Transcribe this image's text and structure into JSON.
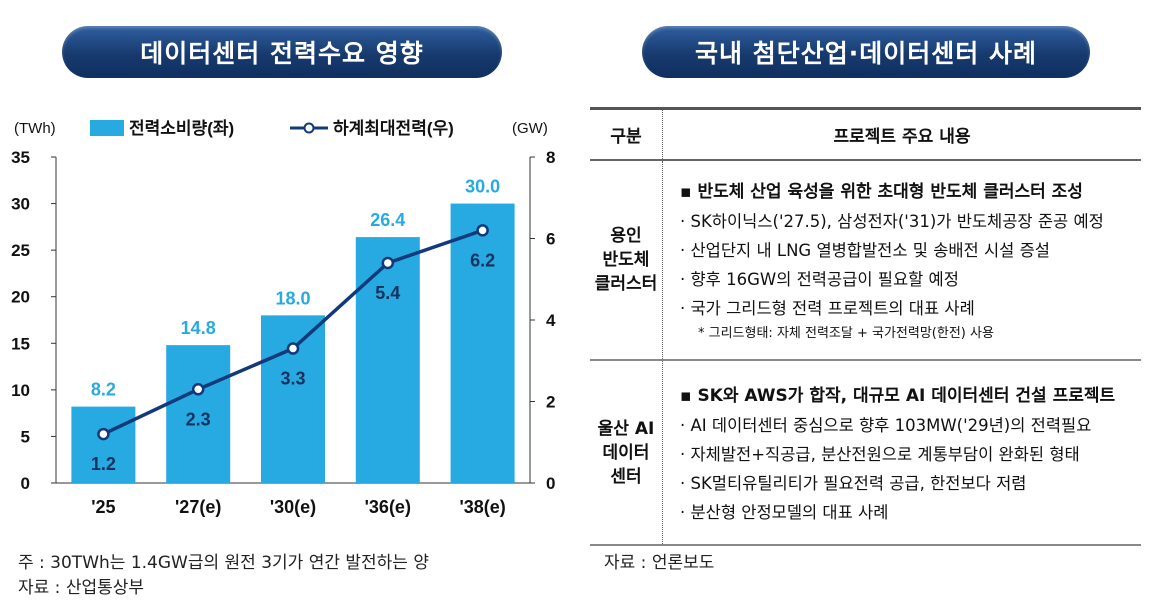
{
  "left_title": "데이터센터 전력수요 영향",
  "right_title": "국내 첨단산업·데이터센터 사례",
  "colors": {
    "bar": "#27aae1",
    "line": "#123a7a",
    "title_bg": "#1b3f75"
  },
  "chart_data": {
    "type": "bar",
    "categories": [
      "'25",
      "'27(e)",
      "'30(e)",
      "'36(e)",
      "'38(e)"
    ],
    "y_left_unit": "(TWh)",
    "y_right_unit": "(GW)",
    "ylim_left": [
      0,
      35
    ],
    "ylim_right": [
      0,
      8
    ],
    "y_left_ticks": [
      "0",
      "5",
      "10",
      "15",
      "20",
      "25",
      "30",
      "35"
    ],
    "y_right_ticks": [
      "0",
      "2",
      "4",
      "6",
      "8"
    ],
    "grid": false,
    "legend_position": "top",
    "series": [
      {
        "name": "전력소비량(좌)",
        "type": "bar",
        "axis": "left",
        "values": [
          8.2,
          14.8,
          18.0,
          26.4,
          30.0
        ],
        "labels": [
          "8.2",
          "14.8",
          "18.0",
          "26.4",
          "30.0"
        ]
      },
      {
        "name": "하계최대전력(우)",
        "type": "line",
        "axis": "right",
        "values": [
          1.2,
          2.3,
          3.3,
          5.4,
          6.2
        ],
        "labels": [
          "1.2",
          "2.3",
          "3.3",
          "5.4",
          "6.2"
        ]
      }
    ]
  },
  "notes": {
    "left_note": "주 : 30TWh는 1.4GW급의 원전 3기가 연간 발전하는 양",
    "left_source": "자료 : 산업통상부",
    "right_source": "자료 : 언론보도"
  },
  "table": {
    "headers": [
      "구분",
      "프로젝트 주요 내용"
    ],
    "rows": [
      {
        "category_lines": [
          "용인",
          "반도체",
          "클러스터"
        ],
        "headline": "▪ 반도체 산업 육성을 위한 초대형 반도체 클러스터 조성",
        "bullets": [
          "· SK하이닉스('27.5), 삼성전자('31)가 반도체공장 준공 예정",
          "· 산업단지 내 LNG 열병합발전소 및 송배전 시설 증설",
          "· 향후 16GW의 전력공급이 필요할 예정",
          "· 국가 그리드형 전력 프로젝트의 대표 사례"
        ],
        "footnote": "* 그리드형태: 자체 전력조달 + 국가전력망(한전) 사용"
      },
      {
        "category_lines": [
          "울산 AI",
          "데이터",
          "센터"
        ],
        "headline": "▪ SK와 AWS가 합작, 대규모 AI 데이터센터 건설 프로젝트",
        "bullets": [
          "· AI 데이터센터 중심으로 향후 103MW('29년)의 전력필요",
          "· 자체발전+직공급, 분산전원으로 계통부담이 완화된 형태",
          "· SK멀티유틸리티가 필요전력 공급, 한전보다 저렴",
          "· 분산형 안정모델의 대표 사례"
        ]
      }
    ]
  }
}
